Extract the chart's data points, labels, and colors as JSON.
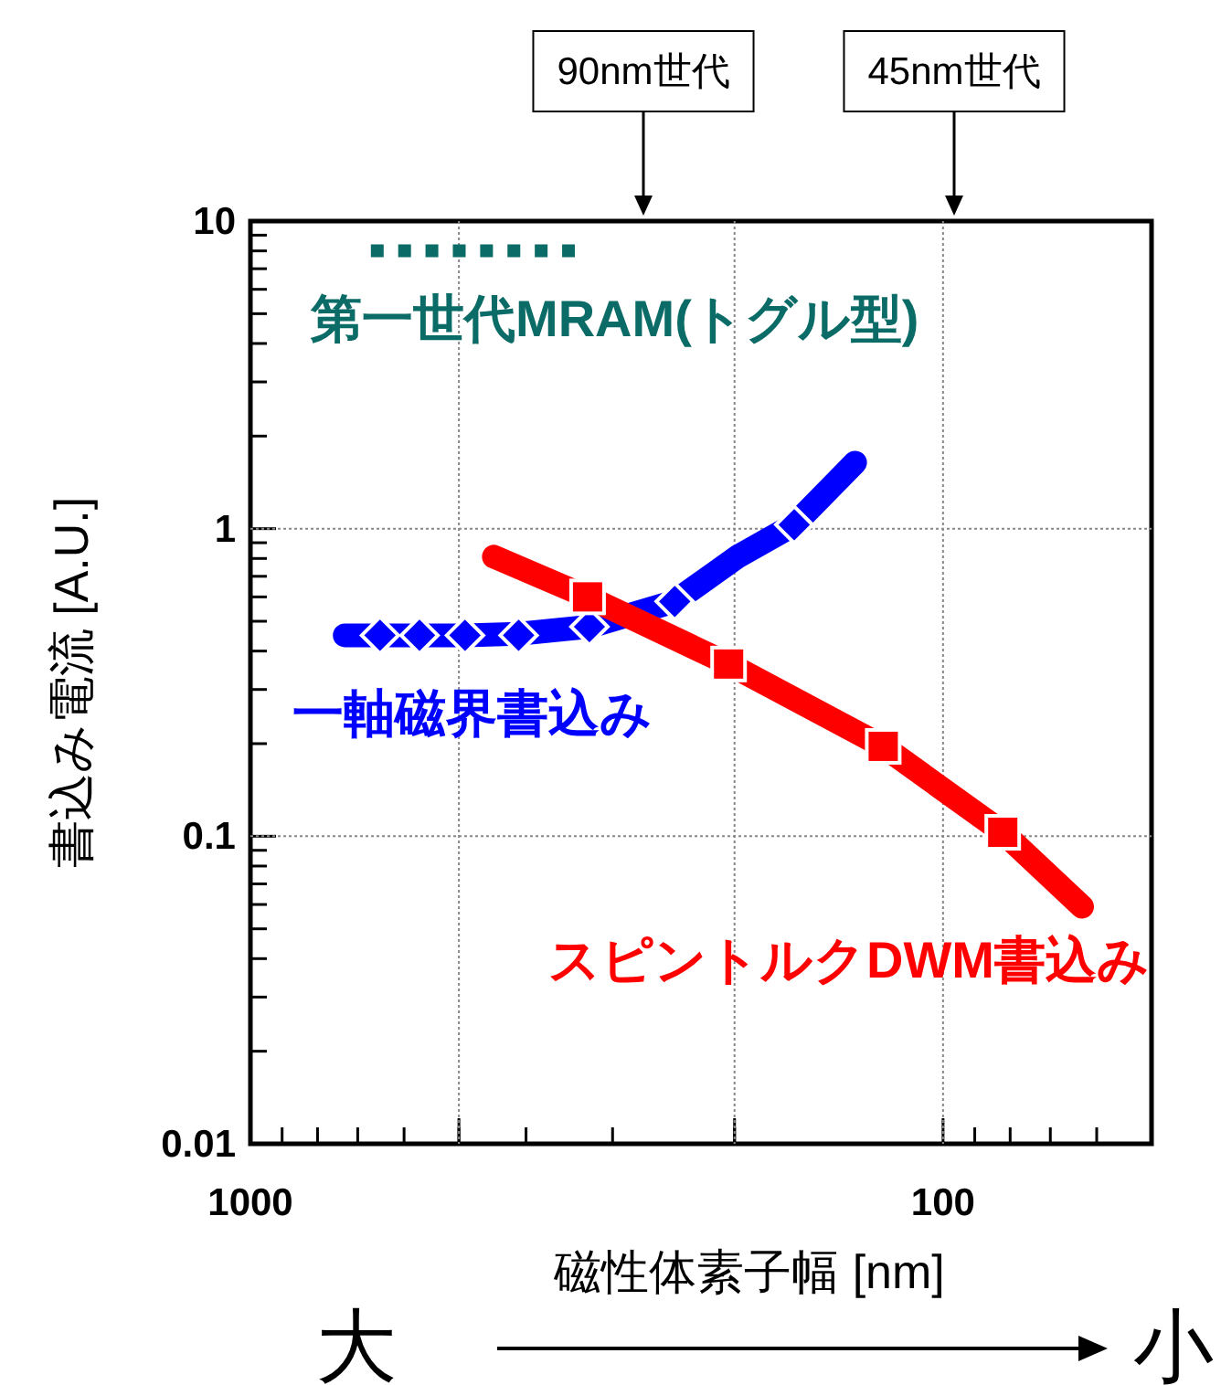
{
  "chart_data": {
    "type": "line",
    "xlabel": "磁性体素子幅  [nm]",
    "ylabel": "書込み電流  [A.U.]",
    "log": "xy",
    "xlim": [
      1000,
      50
    ],
    "ylim": [
      0.01,
      10
    ],
    "xticks": [
      1000,
      {
        "value": 500,
        "label": null
      },
      {
        "value": 200,
        "label": null
      },
      100
    ],
    "yticks": [
      0.01,
      0.1,
      1,
      10
    ],
    "grid": true,
    "series": [
      {
        "name": "第一世代MRAM(トグル型)",
        "type": "line",
        "line_style": "dotted",
        "marker": "none",
        "color": "#0b6b66",
        "x": [
          670,
          340
        ],
        "values": [
          8,
          8
        ]
      },
      {
        "name": "一軸磁界書込み",
        "marker": "none",
        "color": "#0000ff",
        "x": [
          731,
          650,
          490,
          410,
          324,
          244,
          198,
          164,
          134
        ],
        "values": [
          0.45,
          0.45,
          0.45,
          0.455,
          0.48,
          0.58,
          0.81,
          1.03,
          1.64
        ]
      },
      {
        "type": "scatter",
        "marker": "diamond",
        "color": "#0000ff",
        "x": [
          650,
          570,
          490,
          410,
          324,
          244,
          164
        ],
        "values": [
          0.45,
          0.45,
          0.45,
          0.45,
          0.48,
          0.58,
          1.03
        ]
      },
      {
        "name": "スピントルクDWM書込み",
        "marker": "none",
        "color": "#ff0000",
        "x": [
          445,
          326,
          204,
          122,
          82,
          63
        ],
        "values": [
          0.81,
          0.6,
          0.363,
          0.196,
          0.103,
          0.059
        ]
      },
      {
        "type": "scatter",
        "marker": "square",
        "color": "#ff0000",
        "x": [
          326,
          204,
          122,
          82
        ],
        "values": [
          0.6,
          0.363,
          0.196,
          0.103
        ]
      }
    ],
    "annotations": [
      "90nm世代",
      "45nm世代",
      "大",
      "小"
    ]
  }
}
